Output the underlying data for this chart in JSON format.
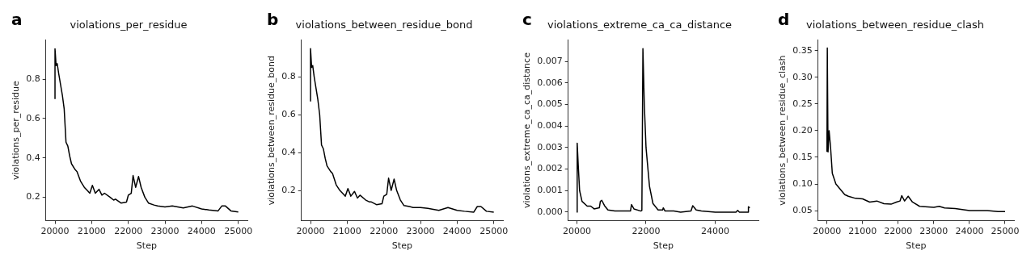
{
  "chart_data": [
    {
      "type": "line",
      "title": "violations_per_residue",
      "xlabel": "Step",
      "ylabel": "violations_per_residue",
      "annotations": [
        "a"
      ],
      "grid": false,
      "legend": false,
      "marker": "none",
      "line_style": "solid",
      "xlim": [
        19750,
        25250
      ],
      "ylim": [
        0.08,
        1.0
      ],
      "xticks": [
        20000,
        21000,
        22000,
        23000,
        24000,
        25000
      ],
      "yticks": [
        0.2,
        0.4,
        0.6,
        0.8
      ],
      "series": [
        {
          "color": "#000000",
          "x": [
            20000,
            20000,
            20030,
            20060,
            20100,
            20200,
            20250,
            20300,
            20350,
            20400,
            20450,
            20550,
            20600,
            20700,
            20800,
            20900,
            20950,
            21020,
            21100,
            21200,
            21280,
            21350,
            21500,
            21600,
            21650,
            21800,
            21950,
            22000,
            22080,
            22130,
            22200,
            22280,
            22350,
            22450,
            22550,
            22700,
            22800,
            23000,
            23200,
            23500,
            23750,
            24000,
            24200,
            24450,
            24550,
            24650,
            24800,
            25000
          ],
          "values": [
            0.7,
            0.955,
            0.87,
            0.88,
            0.83,
            0.72,
            0.65,
            0.48,
            0.46,
            0.41,
            0.37,
            0.34,
            0.33,
            0.28,
            0.25,
            0.23,
            0.22,
            0.26,
            0.22,
            0.24,
            0.21,
            0.22,
            0.2,
            0.185,
            0.19,
            0.17,
            0.175,
            0.21,
            0.22,
            0.31,
            0.25,
            0.305,
            0.25,
            0.2,
            0.17,
            0.16,
            0.155,
            0.15,
            0.155,
            0.145,
            0.155,
            0.14,
            0.135,
            0.13,
            0.155,
            0.155,
            0.13,
            0.125
          ]
        }
      ]
    },
    {
      "type": "line",
      "title": "violations_between_residue_bond",
      "xlabel": "Step",
      "ylabel": "violations_between_residue_bond",
      "annotations": [
        "b"
      ],
      "grid": false,
      "legend": false,
      "marker": "none",
      "line_style": "solid",
      "xlim": [
        19750,
        25250
      ],
      "ylim": [
        0.04,
        0.995
      ],
      "xticks": [
        20000,
        21000,
        22000,
        23000,
        24000,
        25000
      ],
      "yticks": [
        0.2,
        0.4,
        0.6,
        0.8
      ],
      "series": [
        {
          "color": "#000000",
          "x": [
            20000,
            20000,
            20030,
            20060,
            20100,
            20200,
            20250,
            20300,
            20350,
            20400,
            20450,
            20550,
            20600,
            20700,
            20800,
            20900,
            20950,
            21020,
            21100,
            21200,
            21280,
            21350,
            21500,
            21600,
            21650,
            21800,
            21950,
            22000,
            22080,
            22130,
            22200,
            22280,
            22350,
            22450,
            22550,
            22700,
            22800,
            23000,
            23200,
            23500,
            23750,
            24000,
            24200,
            24450,
            24550,
            24650,
            24800,
            25000
          ],
          "values": [
            0.67,
            0.95,
            0.85,
            0.86,
            0.8,
            0.68,
            0.6,
            0.44,
            0.42,
            0.37,
            0.33,
            0.3,
            0.29,
            0.23,
            0.2,
            0.18,
            0.17,
            0.21,
            0.17,
            0.195,
            0.16,
            0.175,
            0.15,
            0.14,
            0.14,
            0.125,
            0.13,
            0.17,
            0.18,
            0.265,
            0.2,
            0.26,
            0.2,
            0.15,
            0.12,
            0.115,
            0.11,
            0.11,
            0.105,
            0.095,
            0.11,
            0.095,
            0.09,
            0.085,
            0.115,
            0.115,
            0.09,
            0.085
          ]
        }
      ]
    },
    {
      "type": "line",
      "title": "violations_extreme_ca_ca_distance",
      "xlabel": "Step",
      "ylabel": "violations_extreme_ca_ca_distance",
      "annotations": [
        "c"
      ],
      "grid": false,
      "legend": false,
      "marker": "none",
      "line_style": "solid",
      "xlim": [
        19750,
        25250
      ],
      "ylim": [
        -0.0004,
        0.008
      ],
      "xticks": [
        20000,
        22000,
        24000
      ],
      "yticks": [
        {
          "value": 0,
          "label": "0.000"
        },
        0.001,
        0.002,
        0.003,
        0.004,
        0.005,
        0.006,
        0.007
      ],
      "series": [
        {
          "color": "#000000",
          "x": [
            20000,
            20010,
            20040,
            20080,
            20150,
            20300,
            20400,
            20500,
            20650,
            20680,
            20720,
            20800,
            20900,
            21100,
            21550,
            21580,
            21650,
            21850,
            21880,
            21910,
            21950,
            22000,
            22100,
            22200,
            22350,
            22480,
            22500,
            22550,
            22800,
            23000,
            23300,
            23350,
            23450,
            23600,
            24000,
            24600,
            24650,
            24700,
            24950,
            24960,
            25000
          ],
          "values": [
            0,
            0.0032,
            0.0022,
            0.001,
            0.0005,
            0.00028,
            0.00028,
            0.00015,
            0.0002,
            0.0005,
            0.00055,
            0.0003,
            0.0001,
            5e-05,
            5e-05,
            0.00035,
            0.00015,
            5e-05,
            8e-05,
            0.0076,
            0.005,
            0.003,
            0.0012,
            0.0004,
            0.0001,
            0.0001,
            0.0002,
            5e-05,
            5e-05,
            0,
            5e-05,
            0.0003,
            0.0001,
            5e-05,
            0,
            0,
            8e-05,
            0,
            0,
            0.00025,
            0.0002
          ]
        }
      ]
    },
    {
      "type": "line",
      "title": "violations_between_residue_clash",
      "xlabel": "Step",
      "ylabel": "violations_between_residue_clash",
      "annotations": [
        "d"
      ],
      "grid": false,
      "legend": false,
      "marker": "none",
      "line_style": "solid",
      "xlim": [
        19750,
        25250
      ],
      "ylim": [
        0.031,
        0.37
      ],
      "xticks": [
        20000,
        21000,
        22000,
        23000,
        24000,
        25000
      ],
      "yticks": [
        0.05,
        {
          "value": 0.1,
          "label": "0.10"
        },
        0.15,
        {
          "value": 0.2,
          "label": "0.20"
        },
        0.25,
        {
          "value": 0.3,
          "label": "0.30"
        },
        0.35
      ],
      "series": [
        {
          "color": "#000000",
          "x": [
            20000,
            20010,
            20030,
            20060,
            20100,
            20150,
            20250,
            20400,
            20500,
            20600,
            20800,
            21000,
            21200,
            21400,
            21600,
            21800,
            21950,
            22050,
            22100,
            22180,
            22280,
            22400,
            22600,
            23000,
            23150,
            23300,
            23600,
            24000,
            24500,
            24800,
            25000
          ],
          "values": [
            0.16,
            0.355,
            0.16,
            0.2,
            0.17,
            0.12,
            0.1,
            0.088,
            0.08,
            0.077,
            0.073,
            0.072,
            0.066,
            0.068,
            0.063,
            0.062,
            0.066,
            0.068,
            0.078,
            0.068,
            0.077,
            0.066,
            0.058,
            0.056,
            0.058,
            0.055,
            0.054,
            0.05,
            0.05,
            0.048,
            0.048
          ]
        }
      ]
    }
  ]
}
